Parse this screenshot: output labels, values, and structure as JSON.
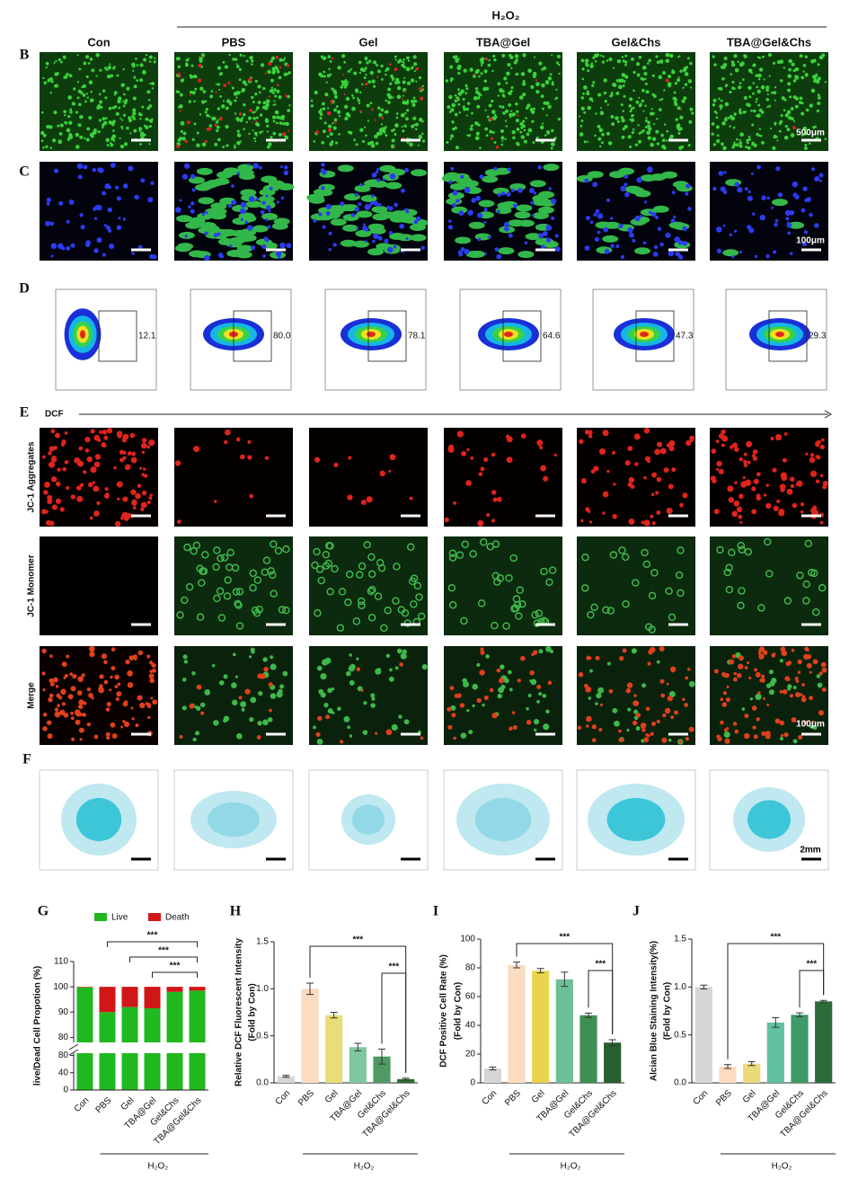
{
  "figure": {
    "treatment": "H₂O₂",
    "groups": [
      "Con",
      "PBS",
      "Gel",
      "TBA@Gel",
      "Gel&Chs",
      "TBA@Gel&Chs"
    ],
    "panels": [
      "B",
      "C",
      "D",
      "E",
      "F"
    ],
    "scale_bars": [
      "500μm",
      "100μm",
      "100μm",
      "2mm"
    ],
    "flow": {
      "axis_label": "DCF",
      "gate_values": [
        "12.1",
        "80.0",
        "78.1",
        "64.6",
        "47.3",
        "29.3"
      ]
    },
    "jc1_rows": [
      "JC-1 Aggregates",
      "JC-1 Monomer",
      "Merge"
    ]
  },
  "chart_data": [
    {
      "type": "bar",
      "stacked": true,
      "panel": "G",
      "ylabel": [
        "live/Dead Cell Propotion (%)"
      ],
      "categories": [
        "Con",
        "PBS",
        "Gel",
        "TBA@Gel",
        "Gel&Chs",
        "TBA@Gel&Chs"
      ],
      "series": [
        {
          "name": "Live",
          "color": "#1fb81f",
          "values": [
            99.8,
            90,
            92,
            91.5,
            98,
            98.5
          ]
        },
        {
          "name": "Death",
          "color": "#d01616",
          "values": [
            0.2,
            10,
            8,
            8.5,
            2,
            1.5
          ]
        }
      ],
      "segments": [
        {
          "ylim": [
            0,
            85
          ],
          "yticks": [
            0,
            40,
            80
          ]
        },
        {
          "ylim": [
            78,
            110
          ],
          "yticks": [
            80,
            90,
            100,
            110
          ]
        }
      ],
      "group_label": "H₂O₂",
      "significance": [
        {
          "text": "***",
          "between": [
            "PBS",
            "TBA@Gel&Chs"
          ]
        },
        {
          "text": "***",
          "between": [
            "Gel",
            "TBA@Gel&Chs"
          ]
        },
        {
          "text": "***",
          "between": [
            "TBA@Gel",
            "TBA@Gel&Chs"
          ]
        }
      ]
    },
    {
      "type": "bar",
      "panel": "H",
      "ylabel": [
        "Relative DCF Fluorescent Intensity",
        "(Fold by Con)"
      ],
      "categories": [
        "Con",
        "PBS",
        "Gel",
        "TBA@Gel",
        "Gel&Chs",
        "TBA@Gel&Chs"
      ],
      "values": [
        0.07,
        1.0,
        0.72,
        0.38,
        0.28,
        0.04
      ],
      "errors": [
        0.01,
        0.06,
        0.03,
        0.04,
        0.08,
        0.01
      ],
      "colors": [
        "#d6d6d6",
        "#fbdcbf",
        "#e9dc7a",
        "#7fc79e",
        "#4f9a62",
        "#2c6b31"
      ],
      "ylim": [
        0,
        1.5
      ],
      "yticks": [
        {
          "value": 0,
          "label": "0.0"
        },
        0.5,
        {
          "value": 1,
          "label": "1.0"
        },
        1.5
      ],
      "group_label": "H₂O₂",
      "significance": [
        {
          "text": "***",
          "between": [
            "PBS",
            "TBA@Gel&Chs"
          ]
        },
        {
          "text": "***",
          "between": [
            "Gel&Chs",
            "TBA@Gel&Chs"
          ]
        }
      ]
    },
    {
      "type": "bar",
      "panel": "I",
      "ylabel": [
        "DCF Positive Cell Rate (%)",
        "(Fold by Con)"
      ],
      "categories": [
        "Con",
        "PBS",
        "Gel",
        "TBA@Gel",
        "Gel&Chs",
        "TBA@Gel&Chs"
      ],
      "values": [
        10,
        82,
        78,
        72,
        47,
        28
      ],
      "errors": [
        1,
        2,
        1.5,
        5,
        1.5,
        2
      ],
      "colors": [
        "#d6d6d6",
        "#fbdcbf",
        "#e9d44e",
        "#6cbf99",
        "#3f8f55",
        "#285f2e"
      ],
      "ylim": [
        0,
        100
      ],
      "yticks": [
        0,
        20,
        40,
        60,
        80,
        100
      ],
      "group_label": "H₂O₂",
      "significance": [
        {
          "text": "***",
          "between": [
            "PBS",
            "TBA@Gel&Chs"
          ]
        },
        {
          "text": "***",
          "between": [
            "Gel&Chs",
            "TBA@Gel&Chs"
          ]
        }
      ]
    },
    {
      "type": "bar",
      "panel": "J",
      "ylabel": [
        "Alcian Blue Staining Intensity(%)",
        "(Fold by Con)"
      ],
      "categories": [
        "Con",
        "PBS",
        "Gel",
        "TBA@Gel",
        "Gel&Chs",
        "TBA@Gel&Chs"
      ],
      "values": [
        1.0,
        0.17,
        0.2,
        0.63,
        0.71,
        0.85
      ],
      "errors": [
        0.02,
        0.02,
        0.02,
        0.05,
        0.02,
        0.01
      ],
      "colors": [
        "#d6d6d6",
        "#fbdcbf",
        "#ecd97a",
        "#62c09e",
        "#3f9a6a",
        "#2a6b3a"
      ],
      "ylim": [
        0,
        1.5
      ],
      "yticks": [
        {
          "value": 0,
          "label": "0.0"
        },
        0.5,
        {
          "value": 1,
          "label": "1.0"
        },
        1.5
      ],
      "group_label": "H₂O₂",
      "significance": [
        {
          "text": "***",
          "between": [
            "PBS",
            "TBA@Gel&Chs"
          ]
        },
        {
          "text": "***",
          "between": [
            "Gel&Chs",
            "TBA@Gel&Chs"
          ]
        }
      ]
    }
  ]
}
